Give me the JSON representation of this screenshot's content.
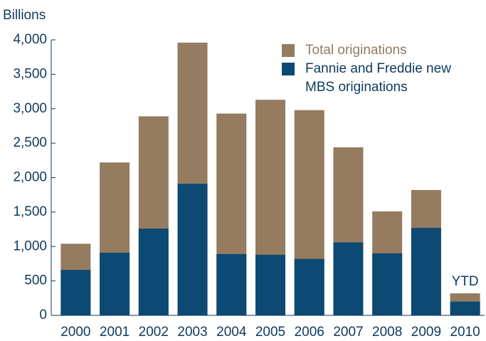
{
  "chart_data": {
    "type": "bar",
    "y_axis_label": "Billions",
    "annotation": "YTD",
    "categories": [
      "2000",
      "2001",
      "2002",
      "2003",
      "2004",
      "2005",
      "2006",
      "2007",
      "2008",
      "2009",
      "2010"
    ],
    "series": [
      {
        "name": "Total originations",
        "color": "#957b5f",
        "values": [
          1040,
          2220,
          2890,
          3960,
          2930,
          3130,
          2980,
          2440,
          1510,
          1820,
          320
        ]
      },
      {
        "name": "Fannie and Freddie new MBS originations",
        "color": "#0d4a73",
        "values": [
          660,
          910,
          1260,
          1910,
          890,
          880,
          820,
          1060,
          900,
          1270,
          200
        ]
      }
    ],
    "ylim": [
      0,
      4000
    ],
    "yticks": [
      0,
      500,
      {
        "value": 1000,
        "label": "1,000"
      },
      {
        "value": 1500,
        "label": "1,500"
      },
      {
        "value": 2000,
        "label": "2,000"
      },
      {
        "value": 2500,
        "label": "2,500"
      },
      {
        "value": 3000,
        "label": "3,000"
      },
      {
        "value": 3500,
        "label": "3,500"
      },
      {
        "value": 4000,
        "label": "4,000"
      }
    ],
    "legend_position": "upper right"
  }
}
